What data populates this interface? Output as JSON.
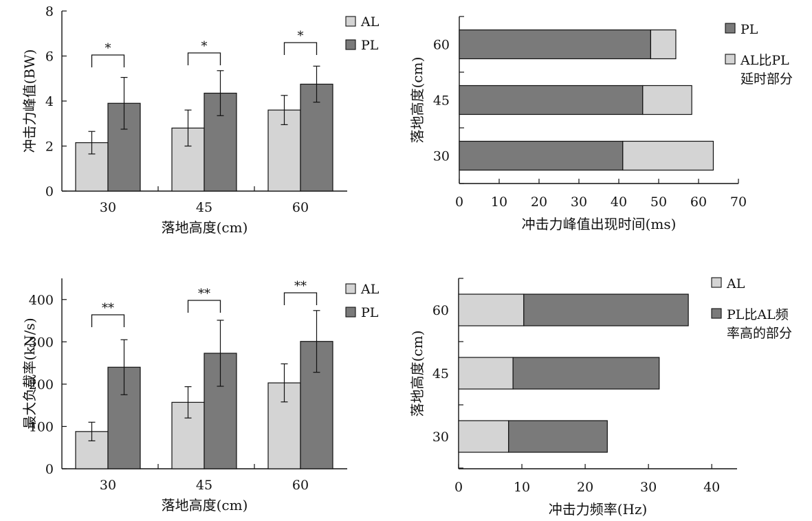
{
  "colors": {
    "light": "#d4d4d4",
    "dark": "#7a7a7a",
    "ink": "#111111"
  },
  "chart_data": [
    {
      "id": "impact-peak",
      "type": "bar",
      "categories": [
        "30",
        "45",
        "60"
      ],
      "series": [
        {
          "name": "AL",
          "values": [
            2.15,
            2.8,
            3.6
          ],
          "errors": [
            0.5,
            0.8,
            0.65
          ],
          "color": "#d4d4d4"
        },
        {
          "name": "PL",
          "values": [
            3.9,
            4.35,
            4.75
          ],
          "errors": [
            1.15,
            1.0,
            0.8
          ],
          "color": "#7a7a7a"
        }
      ],
      "significance": [
        "*",
        "*",
        "*"
      ],
      "ylim": [
        0,
        8
      ],
      "yticks": [
        0,
        2,
        4,
        6,
        8
      ],
      "xlabel": "落地高度(cm)",
      "ylabel": "冲击力峰值(BW)",
      "legend": "top-right"
    },
    {
      "id": "impact-time",
      "type": "bar",
      "orientation": "horizontal",
      "stacked": true,
      "categories": [
        "30",
        "45",
        "60"
      ],
      "series": [
        {
          "name": "PL",
          "values": [
            41,
            46,
            48
          ],
          "color": "#7a7a7a"
        },
        {
          "name": "AL比PL延时部分",
          "values": [
            22.7,
            12.3,
            6.3
          ],
          "color": "#d4d4d4"
        }
      ],
      "xlim": [
        0,
        70
      ],
      "xticks": [
        0,
        10,
        20,
        30,
        40,
        50,
        60,
        70
      ],
      "xlabel": "冲击力峰值出现时间(ms)",
      "ylabel": "落地高度(cm)",
      "legend": "top-right"
    },
    {
      "id": "loading-rate",
      "type": "bar",
      "categories": [
        "30",
        "45",
        "60"
      ],
      "series": [
        {
          "name": "AL",
          "values": [
            88,
            157,
            203
          ],
          "errors": [
            22,
            37,
            45
          ],
          "color": "#d4d4d4"
        },
        {
          "name": "PL",
          "values": [
            240,
            273,
            301
          ],
          "errors": [
            65,
            78,
            73
          ],
          "color": "#7a7a7a"
        }
      ],
      "significance": [
        "**",
        "**",
        "**"
      ],
      "ylim": [
        0,
        450
      ],
      "yticks": [
        0,
        100,
        200,
        300,
        400
      ],
      "xlabel": "落地高度(cm)",
      "ylabel": "最大负载率(kN/s)",
      "legend": "top-right"
    },
    {
      "id": "impact-frequency",
      "type": "bar",
      "orientation": "horizontal",
      "stacked": true,
      "categories": [
        "30",
        "45",
        "60"
      ],
      "series": [
        {
          "name": "AL",
          "values": [
            7.9,
            8.6,
            10.3
          ],
          "color": "#d4d4d4"
        },
        {
          "name": "PL比AL频率高的部分",
          "values": [
            15.6,
            23.1,
            26.0
          ],
          "color": "#7a7a7a"
        }
      ],
      "xlim": [
        0,
        44
      ],
      "xticks": [
        0,
        10,
        20,
        30,
        40
      ],
      "xlabel": "冲击力频率(Hz)",
      "ylabel": "落地高度(cm)",
      "legend": "top-right"
    }
  ],
  "legend_lines": {
    "impact-time": [
      [
        "PL"
      ],
      [
        "AL比PL",
        "延时部分"
      ]
    ],
    "impact-frequency": [
      [
        "AL"
      ],
      [
        "PL比AL频",
        "率高的部分"
      ]
    ]
  }
}
